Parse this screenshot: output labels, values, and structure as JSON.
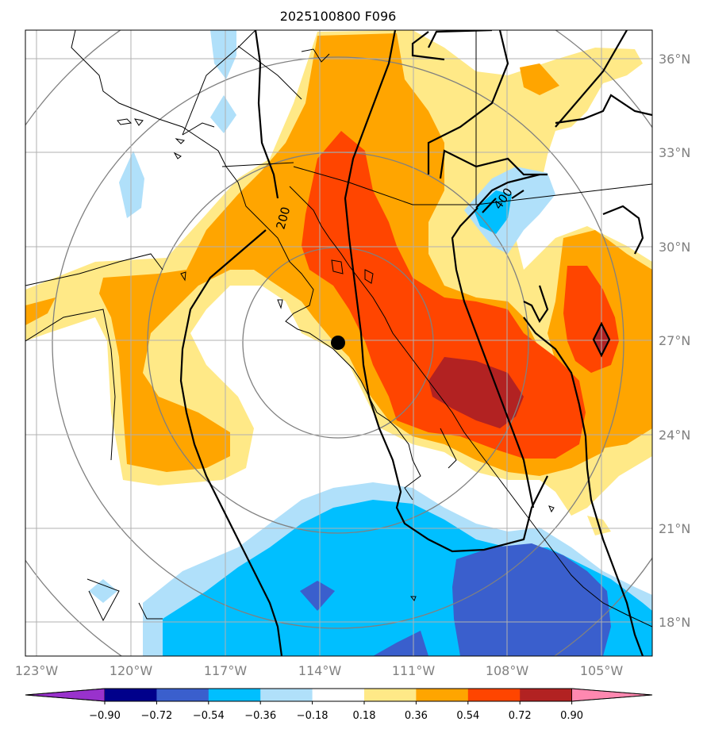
{
  "title": "2025100800 F096",
  "lat_labels": [
    "36°N",
    "33°N",
    "30°N",
    "27°N",
    "24°N",
    "21°N",
    "18°N"
  ],
  "lon_labels": [
    "123°W",
    "120°W",
    "117°W",
    "114°W",
    "111°W",
    "108°W",
    "105°W"
  ],
  "contour_labels": [
    "200",
    "400"
  ],
  "colorbar": {
    "ticks": [
      "−0.90",
      "−0.72",
      "−0.54",
      "−0.36",
      "−0.18",
      "0.18",
      "0.36",
      "0.54",
      "0.72",
      "0.90"
    ],
    "colors": [
      "#9932cc",
      "#00008b",
      "#3a5fcd",
      "#00bfff",
      "#b0e0fa",
      "#ffffff",
      "#ffe987",
      "#ffa500",
      "#ff4500",
      "#b22222",
      "#ff88b0"
    ]
  },
  "palette": {
    "pos_1": "#ffe987",
    "pos_2": "#ffa500",
    "pos_3": "#ff4500",
    "pos_4": "#b22222",
    "neg_1": "#b0e0fa",
    "neg_2": "#00bfff",
    "neg_3": "#3a5fcd"
  },
  "marker": {
    "name": "storm-center",
    "lat": 26.9,
    "lon": -113.4
  }
}
